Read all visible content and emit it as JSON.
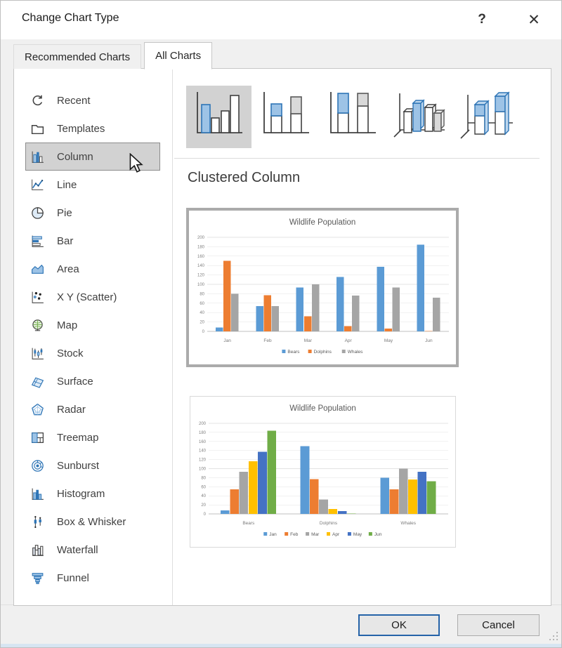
{
  "window": {
    "title": "Change Chart Type",
    "help_label": "?",
    "close_label": "✕"
  },
  "tabs": [
    {
      "label": "Recommended Charts",
      "active": false
    },
    {
      "label": "All Charts",
      "active": true
    }
  ],
  "sidebar": {
    "items": [
      {
        "id": "recent",
        "label": "Recent",
        "selected": false
      },
      {
        "id": "templates",
        "label": "Templates",
        "selected": false
      },
      {
        "id": "column",
        "label": "Column",
        "selected": true
      },
      {
        "id": "line",
        "label": "Line",
        "selected": false
      },
      {
        "id": "pie",
        "label": "Pie",
        "selected": false
      },
      {
        "id": "bar",
        "label": "Bar",
        "selected": false
      },
      {
        "id": "area",
        "label": "Area",
        "selected": false
      },
      {
        "id": "scatter",
        "label": "X Y (Scatter)",
        "selected": false
      },
      {
        "id": "map",
        "label": "Map",
        "selected": false
      },
      {
        "id": "stock",
        "label": "Stock",
        "selected": false
      },
      {
        "id": "surface",
        "label": "Surface",
        "selected": false
      },
      {
        "id": "radar",
        "label": "Radar",
        "selected": false
      },
      {
        "id": "treemap",
        "label": "Treemap",
        "selected": false
      },
      {
        "id": "sunburst",
        "label": "Sunburst",
        "selected": false
      },
      {
        "id": "histogram",
        "label": "Histogram",
        "selected": false
      },
      {
        "id": "box-whisker",
        "label": "Box & Whisker",
        "selected": false
      },
      {
        "id": "waterfall",
        "label": "Waterfall",
        "selected": false
      },
      {
        "id": "funnel",
        "label": "Funnel",
        "selected": false
      }
    ]
  },
  "main": {
    "subtype_heading": "Clustered Column",
    "gallery": [
      {
        "icon": "clustered-column-icon",
        "selected": true
      },
      {
        "icon": "stacked-column-icon",
        "selected": false
      },
      {
        "icon": "100-percent-stacked-column-icon",
        "selected": false
      },
      {
        "icon": "3d-clustered-column-icon",
        "selected": false
      },
      {
        "icon": "3d-stacked-column-icon",
        "selected": false
      }
    ]
  },
  "footer": {
    "ok_label": "OK",
    "cancel_label": "Cancel"
  },
  "colors": {
    "accent_blue": "#2E75B6",
    "selection_gray": "#D2D2D2",
    "ok_button_border": "#2563A8",
    "series_blue": "#5B9BD5",
    "series_orange": "#ED7D31",
    "series_gray": "#A5A5A5",
    "series_gold": "#FFC000",
    "series_dark_blue": "#4472C4",
    "series_green": "#70AD47"
  },
  "chart_data": [
    {
      "type": "bar",
      "title": "Wildlife Population",
      "categories": [
        "Jan",
        "Feb",
        "Mar",
        "Apr",
        "May",
        "Jun"
      ],
      "series": [
        {
          "name": "Bears",
          "color": "#5B9BD5",
          "values": [
            8,
            54,
            93,
            116,
            137,
            184
          ]
        },
        {
          "name": "Dolphins",
          "color": "#ED7D31",
          "values": [
            150,
            77,
            32,
            11,
            6,
            1
          ]
        },
        {
          "name": "Whales",
          "color": "#A5A5A5",
          "values": [
            80,
            54,
            100,
            76,
            93,
            72
          ]
        }
      ],
      "xlabel": "",
      "ylabel": "",
      "ylim": [
        0,
        200
      ],
      "ytick_step": 20,
      "grid": true,
      "legend_position": "bottom",
      "layout": {
        "bar_occupancy": 0.58
      }
    },
    {
      "type": "bar",
      "title": "Wildlife Population",
      "categories": [
        "Bears",
        "Dolphins",
        "Whales"
      ],
      "series": [
        {
          "name": "Jan",
          "color": "#5B9BD5",
          "values": [
            8,
            150,
            80
          ]
        },
        {
          "name": "Feb",
          "color": "#ED7D31",
          "values": [
            54,
            77,
            54
          ]
        },
        {
          "name": "Mar",
          "color": "#A5A5A5",
          "values": [
            93,
            32,
            100
          ]
        },
        {
          "name": "Apr",
          "color": "#FFC000",
          "values": [
            116,
            11,
            76
          ]
        },
        {
          "name": "May",
          "color": "#4472C4",
          "values": [
            137,
            6,
            93
          ]
        },
        {
          "name": "Jun",
          "color": "#70AD47",
          "values": [
            184,
            1,
            72
          ]
        }
      ],
      "xlabel": "",
      "ylabel": "",
      "ylim": [
        0,
        200
      ],
      "ytick_step": 20,
      "grid": true,
      "legend_position": "bottom",
      "layout": {
        "bar_occupancy": 0.7
      }
    }
  ]
}
